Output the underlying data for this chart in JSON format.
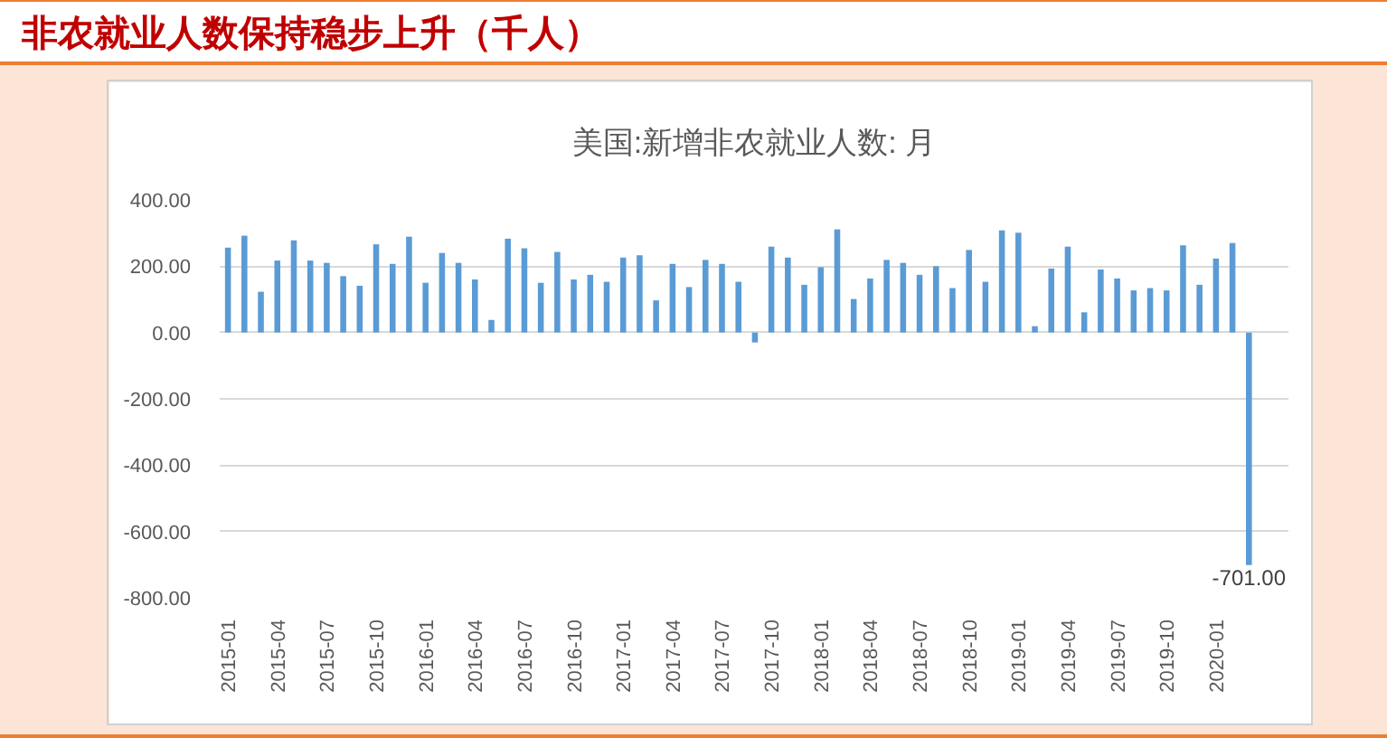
{
  "chart_data": {
    "type": "bar",
    "title": "非农就业人数保持稳步上升（千人）",
    "subtitle": "美国:新增非农就业人数: 月",
    "categories": [
      "2015-01",
      null,
      null,
      "2015-04",
      null,
      null,
      "2015-07",
      null,
      null,
      "2015-10",
      null,
      null,
      "2016-01",
      null,
      null,
      "2016-04",
      null,
      null,
      "2016-07",
      null,
      null,
      "2016-10",
      null,
      null,
      "2017-01",
      null,
      null,
      "2017-04",
      null,
      null,
      "2017-07",
      null,
      null,
      "2017-10",
      null,
      null,
      "2018-01",
      null,
      null,
      "2018-04",
      null,
      null,
      "2018-07",
      null,
      null,
      "2018-10",
      null,
      null,
      "2019-01",
      null,
      null,
      "2019-04",
      null,
      null,
      "2019-07",
      null,
      null,
      "2019-10",
      null,
      null,
      "2020-01",
      null,
      null
    ],
    "values": [
      256,
      292,
      123,
      217,
      278,
      217,
      210,
      170,
      141,
      266,
      207,
      289,
      150,
      240,
      210,
      160,
      38,
      283,
      254,
      150,
      243,
      160,
      174,
      153,
      226,
      233,
      97,
      207,
      137,
      219,
      207,
      153,
      -30,
      259,
      226,
      144,
      197,
      311,
      101,
      163,
      219,
      210,
      174,
      200,
      134,
      249,
      153,
      308,
      301,
      19,
      193,
      259,
      61,
      190,
      163,
      127,
      134,
      127,
      263,
      144,
      223,
      270,
      -701
    ],
    "value_labels": [
      null,
      null,
      null,
      null,
      null,
      null,
      null,
      null,
      null,
      null,
      null,
      null,
      null,
      null,
      null,
      null,
      null,
      null,
      null,
      null,
      null,
      null,
      null,
      null,
      null,
      null,
      null,
      null,
      null,
      null,
      null,
      null,
      null,
      null,
      null,
      null,
      null,
      null,
      null,
      null,
      null,
      null,
      null,
      null,
      null,
      null,
      null,
      null,
      null,
      null,
      null,
      null,
      null,
      null,
      null,
      null,
      null,
      null,
      null,
      null,
      null,
      null,
      "-701.00"
    ],
    "color": "#5b9bd5",
    "ylim": [
      -800,
      400
    ],
    "yticks": [
      {
        "value": 400,
        "label": "400.00"
      },
      {
        "value": 200,
        "label": "200.00"
      },
      {
        "value": 0,
        "label": "0.00"
      },
      {
        "value": -200,
        "label": "-200.00"
      },
      {
        "value": -400,
        "label": "-400.00"
      },
      {
        "value": -600,
        "label": "-600.00"
      },
      {
        "value": -800,
        "label": "-800.00"
      }
    ],
    "grid": "y"
  }
}
